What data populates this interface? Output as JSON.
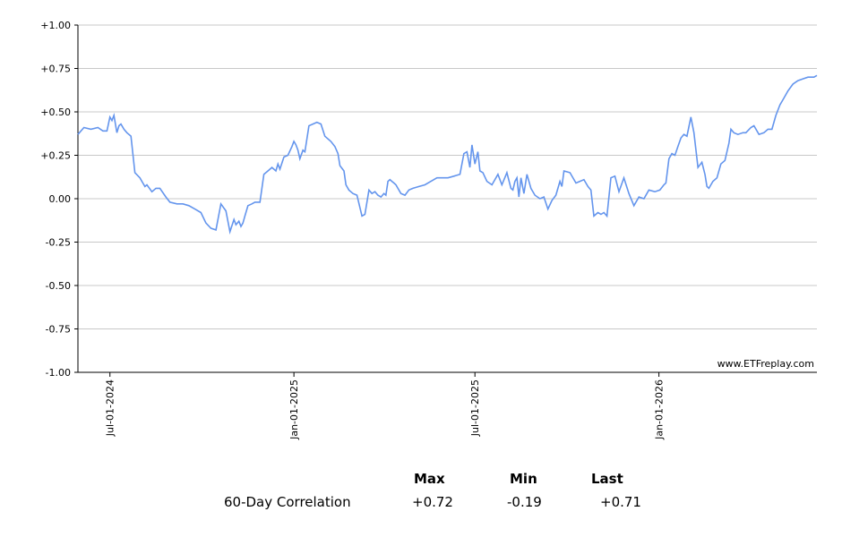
{
  "colors": {
    "line": "#6495ED",
    "grid": "#C8C8C8",
    "axis": "#000000"
  },
  "watermark": "www.ETFreplay.com",
  "chart_data": {
    "type": "line",
    "title": "",
    "xlabel": "",
    "ylabel": "",
    "ylim": [
      -1.0,
      1.0
    ],
    "y_ticks": [
      "+1.00",
      "+0.75",
      "+0.50",
      "+0.25",
      "0.00",
      "-0.25",
      "-0.50",
      "-0.75",
      "-1.00"
    ],
    "x_ticks": [
      "Jul-01-2024",
      "Jan-01-2025",
      "Jul-01-2025",
      "Jan-01-2026"
    ],
    "grid": "horizontal",
    "series": [
      {
        "x": [
          "2024-05-30",
          "2024-06-05",
          "2024-06-12",
          "2024-06-19",
          "2024-06-24",
          "2024-06-28",
          "2024-07-01",
          "2024-07-03",
          "2024-07-05",
          "2024-07-08",
          "2024-07-10",
          "2024-07-12",
          "2024-07-15",
          "2024-07-18",
          "2024-07-22",
          "2024-07-26",
          "2024-07-31",
          "2024-08-02",
          "2024-08-05",
          "2024-08-07",
          "2024-08-12",
          "2024-08-16",
          "2024-08-20",
          "2024-08-26",
          "2024-08-30",
          "2024-09-06",
          "2024-09-12",
          "2024-09-18",
          "2024-09-24",
          "2024-09-30",
          "2024-10-05",
          "2024-10-10",
          "2024-10-15",
          "2024-10-20",
          "2024-10-25",
          "2024-10-29",
          "2024-11-02",
          "2024-11-04",
          "2024-11-07",
          "2024-11-09",
          "2024-11-11",
          "2024-11-13",
          "2024-11-16",
          "2024-11-20",
          "2024-11-23",
          "2024-11-25",
          "2024-11-28",
          "2024-12-02",
          "2024-12-06",
          "2024-12-10",
          "2024-12-14",
          "2024-12-16",
          "2024-12-18",
          "2024-12-22",
          "2024-12-26",
          "2024-12-30",
          "2025-01-01",
          "2025-01-03",
          "2025-01-05",
          "2025-01-07",
          "2025-01-10",
          "2025-01-12",
          "2025-01-16",
          "2025-01-20",
          "2025-01-24",
          "2025-01-28",
          "2025-02-01",
          "2025-02-07",
          "2025-02-11",
          "2025-02-14",
          "2025-02-16",
          "2025-02-20",
          "2025-02-22",
          "2025-02-25",
          "2025-03-01",
          "2025-03-05",
          "2025-03-10",
          "2025-03-13",
          "2025-03-17",
          "2025-03-20",
          "2025-03-23",
          "2025-03-26",
          "2025-03-29",
          "2025-04-01",
          "2025-04-03",
          "2025-04-05",
          "2025-04-07",
          "2025-04-09",
          "2025-04-11",
          "2025-04-13",
          "2025-04-15",
          "2025-04-18",
          "2025-04-22",
          "2025-04-26",
          "2025-04-30",
          "2025-05-06",
          "2025-05-12",
          "2025-05-18",
          "2025-05-24",
          "2025-05-30",
          "2025-06-04",
          "2025-06-10",
          "2025-06-16",
          "2025-06-20",
          "2025-06-23",
          "2025-06-26",
          "2025-06-28",
          "2025-07-01",
          "2025-07-04",
          "2025-07-06",
          "2025-07-09",
          "2025-07-13",
          "2025-07-18",
          "2025-07-24",
          "2025-07-28",
          "2025-08-02",
          "2025-08-06",
          "2025-08-08",
          "2025-08-10",
          "2025-08-12",
          "2025-08-14",
          "2025-08-16",
          "2025-08-19",
          "2025-08-22",
          "2025-08-26",
          "2025-08-30",
          "2025-09-04",
          "2025-09-08",
          "2025-09-12",
          "2025-09-16",
          "2025-09-20",
          "2025-09-24",
          "2025-09-26",
          "2025-09-28",
          "2025-10-04",
          "2025-10-10",
          "2025-10-14",
          "2025-10-18",
          "2025-10-20",
          "2025-10-22",
          "2025-10-25",
          "2025-10-28",
          "2025-11-01",
          "2025-11-04",
          "2025-11-07",
          "2025-11-10",
          "2025-11-14",
          "2025-11-18",
          "2025-11-22",
          "2025-11-27",
          "2025-12-02",
          "2025-12-07",
          "2025-12-12",
          "2025-12-17",
          "2025-12-22",
          "2025-12-28",
          "2026-01-02",
          "2026-01-06",
          "2026-01-08",
          "2026-01-11",
          "2026-01-14",
          "2026-01-17",
          "2026-01-20",
          "2026-01-23",
          "2026-01-26",
          "2026-01-29",
          "2026-02-02",
          "2026-02-05",
          "2026-02-09",
          "2026-02-13",
          "2026-02-16",
          "2026-02-18",
          "2026-02-20",
          "2026-02-24",
          "2026-02-28",
          "2026-03-04",
          "2026-03-08",
          "2026-03-12",
          "2026-03-14",
          "2026-03-17",
          "2026-03-21",
          "2026-03-26",
          "2026-03-29",
          "2026-04-03",
          "2026-04-06",
          "2026-04-11",
          "2026-04-16",
          "2026-04-20",
          "2026-04-24",
          "2026-04-28",
          "2026-05-02",
          "2026-05-06",
          "2026-05-10",
          "2026-05-15",
          "2026-05-20",
          "2026-05-25",
          "2026-05-30",
          "2026-06-03",
          "2026-06-05",
          "2026-06-08"
        ],
        "y": [
          0.37,
          0.41,
          0.4,
          0.41,
          0.39,
          0.39,
          0.47,
          0.45,
          0.48,
          0.38,
          0.42,
          0.43,
          0.4,
          0.38,
          0.36,
          0.15,
          0.12,
          0.1,
          0.07,
          0.08,
          0.04,
          0.06,
          0.06,
          0.01,
          -0.02,
          -0.03,
          -0.03,
          -0.04,
          -0.06,
          -0.08,
          -0.14,
          -0.17,
          -0.18,
          -0.03,
          -0.07,
          -0.19,
          -0.12,
          -0.15,
          -0.13,
          -0.16,
          -0.14,
          -0.1,
          -0.04,
          -0.03,
          -0.02,
          -0.02,
          -0.02,
          0.14,
          0.16,
          0.18,
          0.16,
          0.2,
          0.17,
          0.24,
          0.25,
          0.3,
          0.33,
          0.31,
          0.28,
          0.23,
          0.28,
          0.27,
          0.42,
          0.43,
          0.44,
          0.43,
          0.36,
          0.33,
          0.3,
          0.26,
          0.19,
          0.16,
          0.08,
          0.05,
          0.03,
          0.02,
          -0.1,
          -0.09,
          0.05,
          0.03,
          0.04,
          0.02,
          0.01,
          0.03,
          0.02,
          0.1,
          0.11,
          0.1,
          0.09,
          0.08,
          0.06,
          0.03,
          0.02,
          0.05,
          0.06,
          0.07,
          0.08,
          0.1,
          0.12,
          0.12,
          0.12,
          0.13,
          0.14,
          0.26,
          0.27,
          0.18,
          0.31,
          0.2,
          0.27,
          0.16,
          0.15,
          0.1,
          0.08,
          0.14,
          0.08,
          0.15,
          0.06,
          0.05,
          0.1,
          0.12,
          0.01,
          0.12,
          0.03,
          0.14,
          0.06,
          0.02,
          0.0,
          0.01,
          -0.06,
          -0.01,
          0.02,
          0.1,
          0.07,
          0.16,
          0.15,
          0.09,
          0.1,
          0.11,
          0.09,
          0.07,
          0.05,
          -0.1,
          -0.08,
          -0.09,
          -0.08,
          -0.1,
          0.12,
          0.13,
          0.04,
          0.12,
          0.03,
          -0.04,
          0.01,
          0.0,
          0.05,
          0.04,
          0.05,
          0.08,
          0.09,
          0.23,
          0.26,
          0.25,
          0.3,
          0.35,
          0.37,
          0.36,
          0.47,
          0.38,
          0.18,
          0.21,
          0.14,
          0.07,
          0.06,
          0.1,
          0.12,
          0.2,
          0.22,
          0.32,
          0.4,
          0.38,
          0.37,
          0.38,
          0.38,
          0.41,
          0.42,
          0.37,
          0.38,
          0.4,
          0.4,
          0.48,
          0.54,
          0.58,
          0.62,
          0.66,
          0.68,
          0.69,
          0.7,
          0.7,
          0.7,
          0.71
        ]
      }
    ]
  },
  "stats": {
    "headers": {
      "max": "Max",
      "min": "Min",
      "last": "Last"
    },
    "row_label": "60-Day Correlation",
    "max": "+0.72",
    "min": "-0.19",
    "last": "+0.71"
  }
}
